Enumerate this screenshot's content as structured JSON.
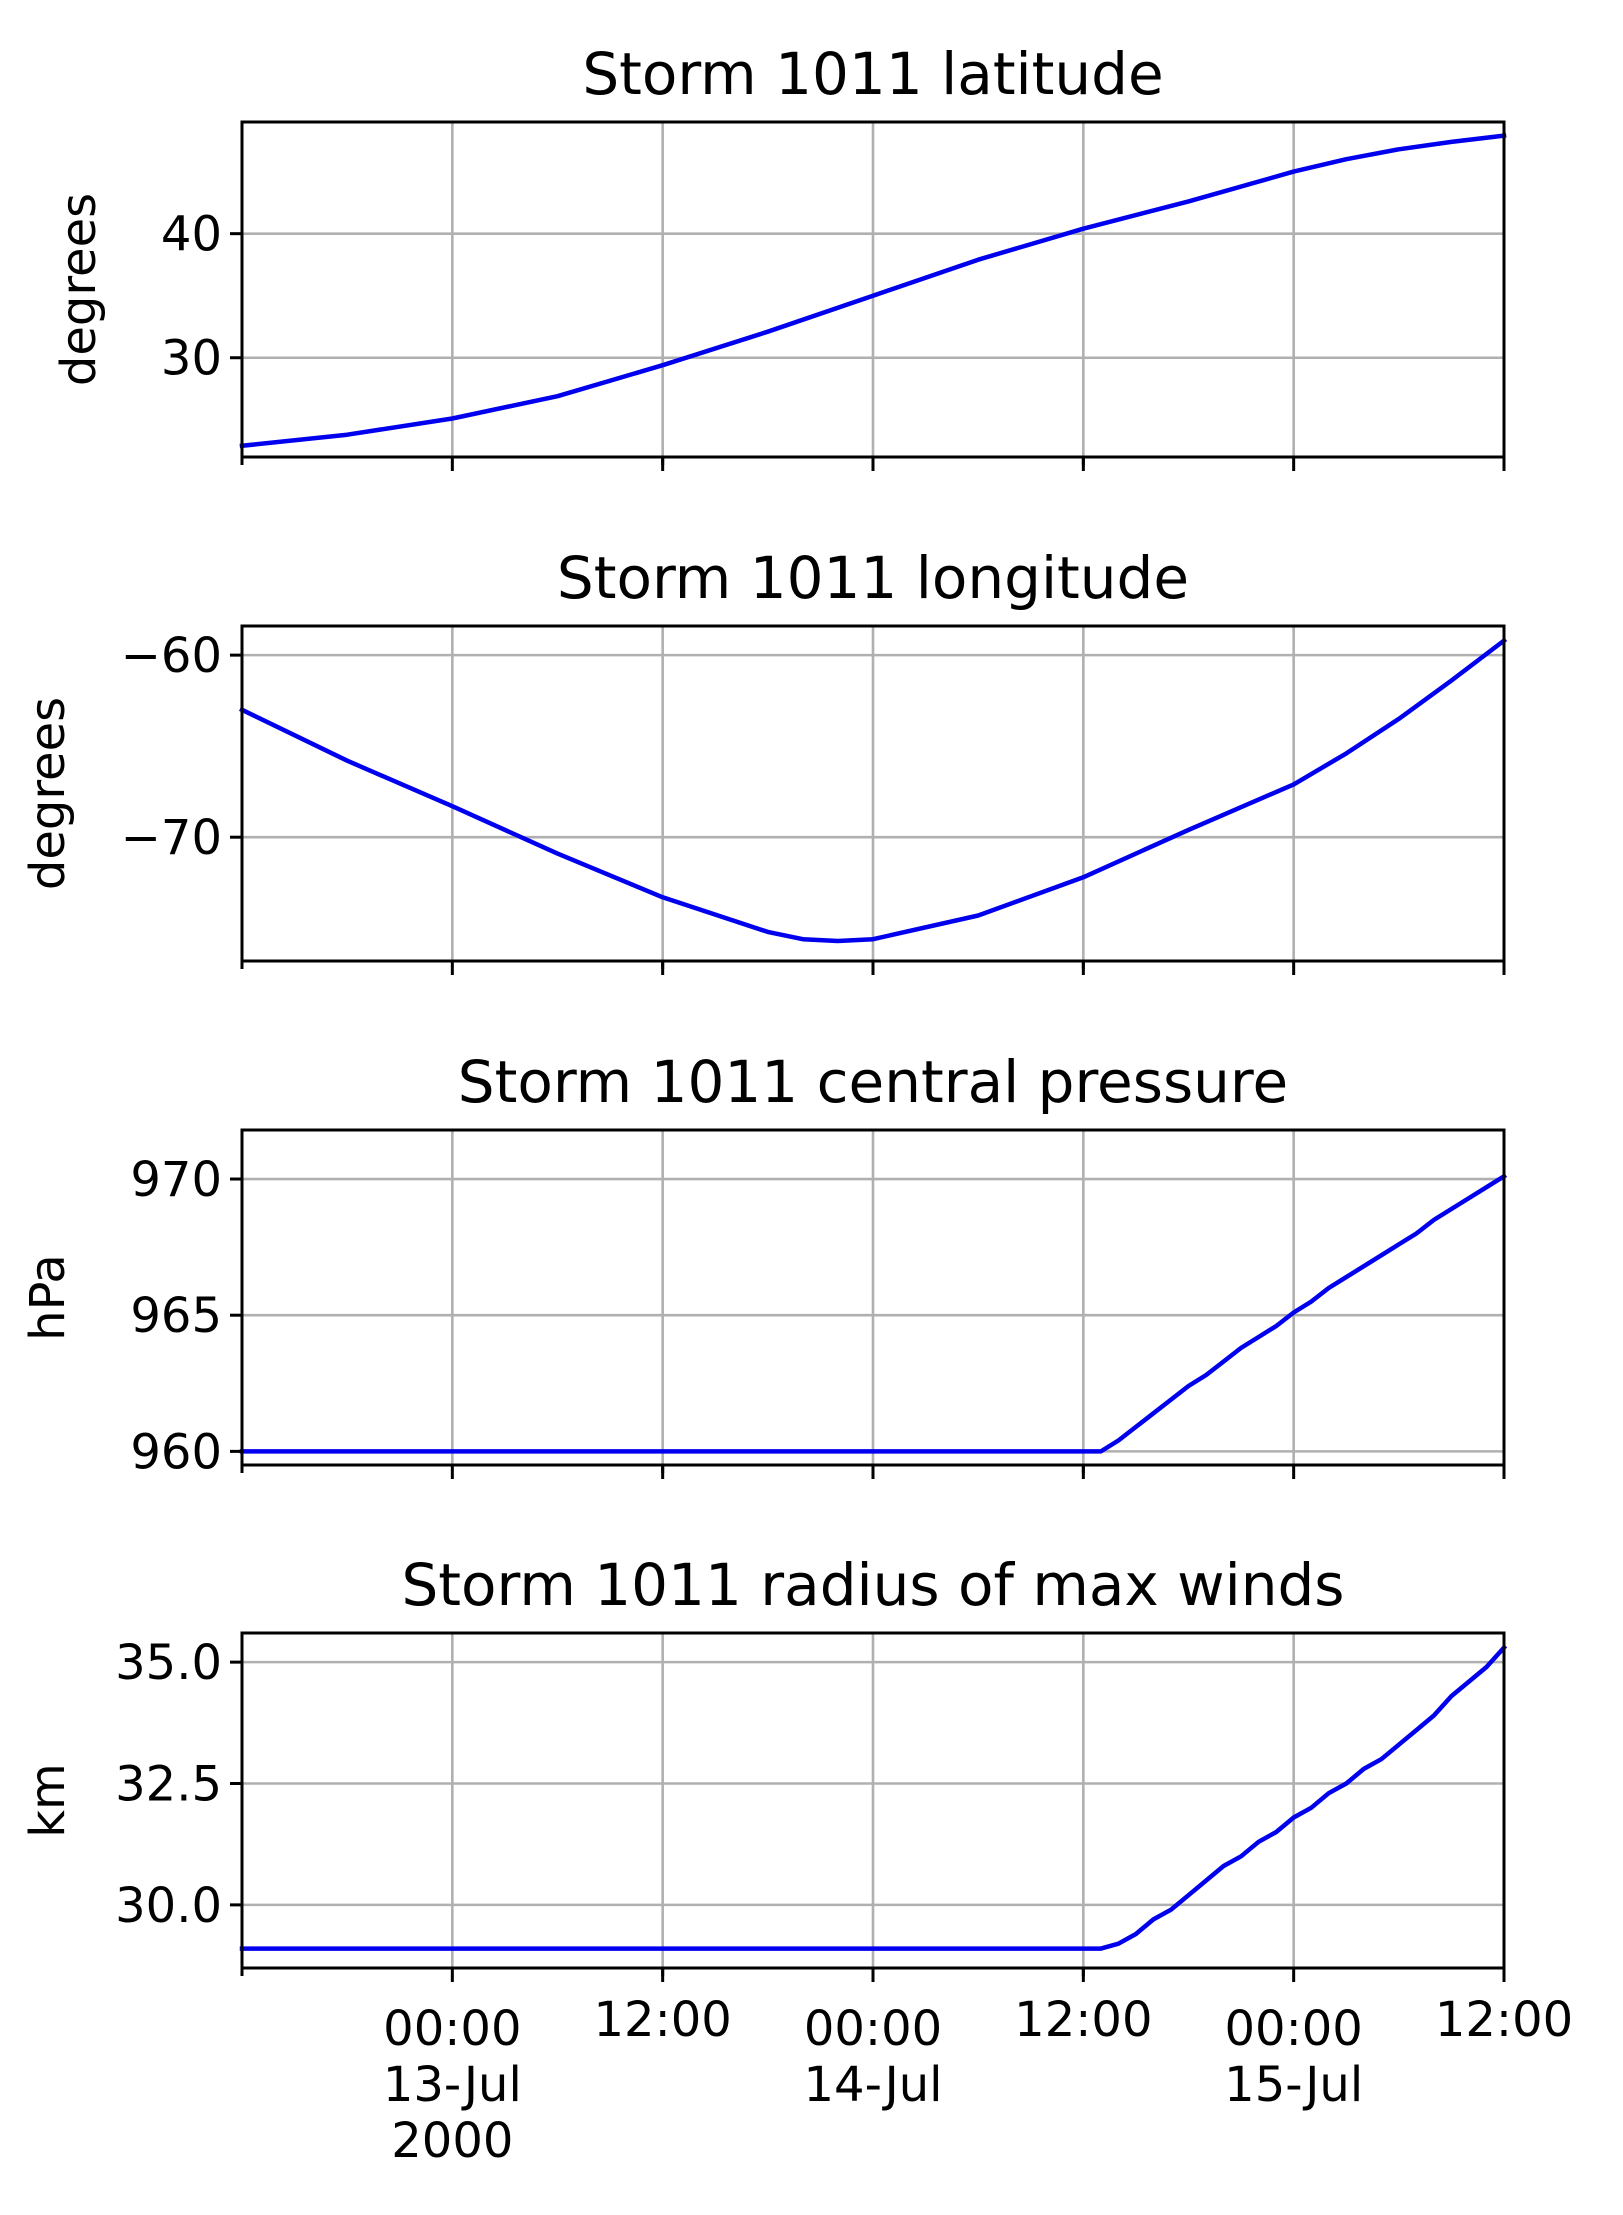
{
  "colors": {
    "line": "#0000ee",
    "grid": "#b0b0b0",
    "axis": "#000000"
  },
  "x_ticks": [
    {
      "hour": 12,
      "lines": [
        "00:00",
        "13-Jul",
        "2000"
      ]
    },
    {
      "hour": 24,
      "lines": [
        "12:00"
      ]
    },
    {
      "hour": 36,
      "lines": [
        "00:00",
        "14-Jul"
      ]
    },
    {
      "hour": 48,
      "lines": [
        "12:00"
      ]
    },
    {
      "hour": 60,
      "lines": [
        "00:00",
        "15-Jul"
      ]
    },
    {
      "hour": 72,
      "lines": [
        "12:00"
      ]
    }
  ],
  "x_minor_hours": [
    0,
    24,
    48
  ],
  "chart_data": [
    {
      "type": "line",
      "title": "Storm 1011 latitude",
      "ylabel": "degrees",
      "xlabel": "",
      "xlim": [
        0,
        72
      ],
      "ylim": [
        22,
        49
      ],
      "yticks": [
        30,
        40
      ],
      "ytick_labels": [
        "30",
        "40"
      ],
      "series": [
        {
          "name": "latitude",
          "x": [
            0,
            6,
            12,
            18,
            24,
            30,
            36,
            42,
            48,
            54,
            60,
            63,
            66,
            69,
            72
          ],
          "y": [
            22.9,
            23.8,
            25.1,
            26.9,
            29.4,
            32.1,
            35.0,
            37.9,
            40.4,
            42.6,
            45.0,
            46.0,
            46.8,
            47.4,
            47.9
          ]
        }
      ]
    },
    {
      "type": "line",
      "title": "Storm 1011 longitude",
      "ylabel": "degrees",
      "xlabel": "",
      "xlim": [
        0,
        72
      ],
      "ylim": [
        -76.8,
        -58.4
      ],
      "yticks": [
        -70,
        -60
      ],
      "ytick_labels": [
        "−70",
        "−60"
      ],
      "series": [
        {
          "name": "longitude",
          "x": [
            0,
            6,
            12,
            18,
            24,
            30,
            32,
            34,
            36,
            42,
            48,
            54,
            60,
            63,
            66,
            69,
            72
          ],
          "y": [
            -63.0,
            -65.8,
            -68.3,
            -70.9,
            -73.3,
            -75.2,
            -75.6,
            -75.7,
            -75.6,
            -74.3,
            -72.2,
            -69.6,
            -67.1,
            -65.4,
            -63.5,
            -61.4,
            -59.2
          ]
        }
      ]
    },
    {
      "type": "line",
      "title": "Storm 1011 central pressure",
      "ylabel": "hPa",
      "xlabel": "",
      "xlim": [
        0,
        72
      ],
      "ylim": [
        959.5,
        971.8
      ],
      "yticks": [
        960,
        965,
        970
      ],
      "ytick_labels": [
        "960",
        "965",
        "970"
      ],
      "series": [
        {
          "name": "central pressure",
          "x": [
            0,
            49,
            50,
            51,
            52,
            53,
            54,
            55,
            56,
            57,
            58,
            59,
            60,
            61,
            62,
            63,
            64,
            65,
            66,
            67,
            68,
            69,
            70,
            71,
            72
          ],
          "y": [
            960.0,
            960.0,
            960.4,
            960.9,
            961.4,
            961.9,
            962.4,
            962.8,
            963.3,
            963.8,
            964.2,
            964.6,
            965.1,
            965.5,
            966.0,
            966.4,
            966.8,
            967.2,
            967.6,
            968.0,
            968.5,
            968.9,
            969.3,
            969.7,
            970.1
          ]
        }
      ]
    },
    {
      "type": "line",
      "title": "Storm 1011 radius of max winds",
      "ylabel": "km",
      "xlabel": "",
      "xlim": [
        0,
        72
      ],
      "ylim": [
        28.7,
        35.6
      ],
      "yticks": [
        30.0,
        32.5,
        35.0
      ],
      "ytick_labels": [
        "30.0",
        "32.5",
        "35.0"
      ],
      "series": [
        {
          "name": "radius of max winds",
          "x": [
            0,
            49,
            50,
            51,
            52,
            53,
            54,
            55,
            56,
            57,
            58,
            59,
            60,
            61,
            62,
            63,
            64,
            65,
            66,
            67,
            68,
            69,
            70,
            71,
            72
          ],
          "y": [
            29.1,
            29.1,
            29.2,
            29.4,
            29.7,
            29.9,
            30.2,
            30.5,
            30.8,
            31.0,
            31.3,
            31.5,
            31.8,
            32.0,
            32.3,
            32.5,
            32.8,
            33.0,
            33.3,
            33.6,
            33.9,
            34.3,
            34.6,
            34.9,
            35.3
          ]
        }
      ]
    }
  ]
}
